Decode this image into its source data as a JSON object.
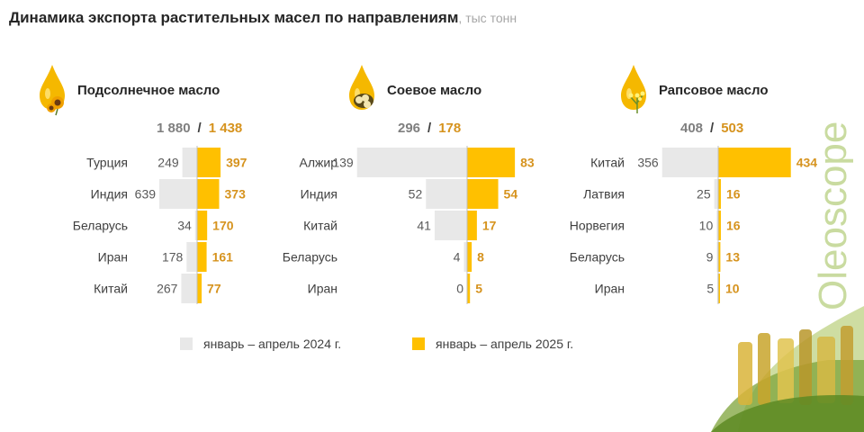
{
  "title": {
    "main": "Динамика экспорта растительных масел по направлениям",
    "unit": ", тыс тонн"
  },
  "brand": "Oleoscope",
  "colors": {
    "y2024": "#e8e8e8",
    "y2025": "#ffc000",
    "value2025_text": "#d6931e",
    "value2024_text": "#595959",
    "axis": "#bfbfbf"
  },
  "legend": {
    "y2024": "январь – апрель 2024 г.",
    "y2025": "январь – апрель 2025 г."
  },
  "panels": [
    {
      "title": "Подсолнечное масло",
      "icon": "sunflower-oil-icon",
      "total_2024": "1 880",
      "separator": "/",
      "total_2025": "1 438"
    },
    {
      "title": "Соевое масло",
      "icon": "soybean-oil-icon",
      "total_2024": "296",
      "separator": "/",
      "total_2025": "178"
    },
    {
      "title": "Рапсовое масло",
      "icon": "rapeseed-oil-icon",
      "total_2024": "408",
      "separator": "/",
      "total_2025": "503"
    }
  ],
  "chart_data": [
    {
      "type": "bar",
      "title": "Подсолнечное масло",
      "categories": [
        "Турция",
        "Индия",
        "Беларусь",
        "Иран",
        "Китай"
      ],
      "series": [
        {
          "name": "январь – апрель 2024 г.",
          "values": [
            249,
            639,
            34,
            178,
            267
          ]
        },
        {
          "name": "январь – апрель 2025 г.",
          "values": [
            397,
            373,
            170,
            161,
            77
          ]
        }
      ]
    },
    {
      "type": "bar",
      "title": "Соевое масло",
      "categories": [
        "Алжир",
        "Индия",
        "Китай",
        "Беларусь",
        "Иран"
      ],
      "series": [
        {
          "name": "январь – апрель 2024 г.",
          "values": [
            139,
            52,
            41,
            4,
            0
          ]
        },
        {
          "name": "январь – апрель 2025 г.",
          "values": [
            83,
            54,
            17,
            8,
            5
          ]
        }
      ]
    },
    {
      "type": "bar",
      "title": "Рапсовое масло",
      "categories": [
        "Китай",
        "Латвия",
        "Норвегия",
        "Беларусь",
        "Иран"
      ],
      "series": [
        {
          "name": "январь – апрель 2024 г.",
          "values": [
            356,
            25,
            10,
            9,
            5
          ]
        },
        {
          "name": "январь – апрель 2025 г.",
          "values": [
            434,
            16,
            16,
            13,
            10
          ]
        }
      ]
    }
  ]
}
